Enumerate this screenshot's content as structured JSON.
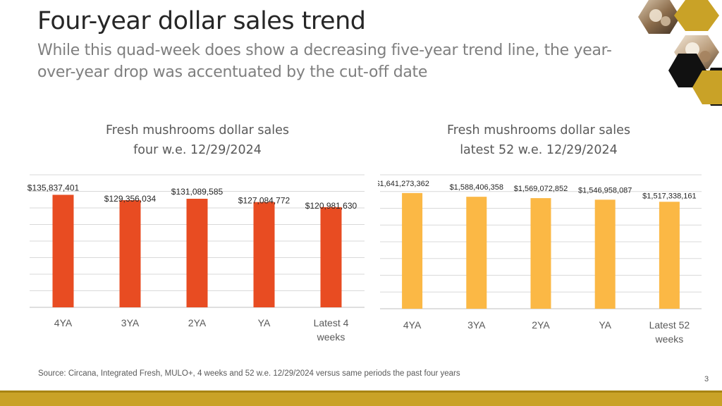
{
  "header": {
    "title": "Four-year dollar sales trend",
    "subtitle": "While this quad-week does show a decreasing five-year trend line, the year-over-year drop was accentuated by the cut-off date"
  },
  "colors": {
    "left_bar": "#e84c22",
    "right_bar": "#fbb845",
    "footer": "#c9a227",
    "grid": "#d9d9d9"
  },
  "chart_data": [
    {
      "id": "left",
      "type": "bar",
      "title_lines": [
        "Fresh mushrooms dollar sales",
        "four w.e. 12/29/2024"
      ],
      "categories": [
        [
          "4YA"
        ],
        [
          "3YA"
        ],
        [
          "2YA"
        ],
        [
          "YA"
        ],
        [
          "Latest 4",
          "weeks"
        ]
      ],
      "values": [
        135837401,
        129356034,
        131089585,
        127084772,
        120981630
      ],
      "labels": [
        "$135,837,401",
        "$129,356,034",
        "$131,089,585",
        "$127,084,772",
        "$120,981,630"
      ],
      "ylim": [
        0,
        160000000
      ],
      "grid_lines": 9,
      "color": "#e84c22"
    },
    {
      "id": "right",
      "type": "bar",
      "title_lines": [
        "Fresh mushrooms dollar sales",
        "latest 52 w.e. 12/29/2024"
      ],
      "categories": [
        [
          "4YA"
        ],
        [
          "3YA"
        ],
        [
          "2YA"
        ],
        [
          "YA"
        ],
        [
          "Latest 52",
          "weeks"
        ]
      ],
      "values": [
        1641273362,
        1588406358,
        1569072852,
        1546958087,
        1517338161
      ],
      "labels": [
        "$1,641,273,362",
        "$1,588,406,358",
        "$1,569,072,852",
        "$1,546,958,087",
        "$1,517,338,161"
      ],
      "ylim": [
        0,
        1900000000
      ],
      "grid_lines": 9,
      "color": "#fbb845"
    }
  ],
  "footer": {
    "source": "Source: Circana, Integrated Fresh, MULO+, 4 weeks and 52 w.e. 12/29/2024 versus same periods the past four years",
    "page_number": "3"
  },
  "decoration": {
    "image_description_icon": "mushroom-photo-honeycomb"
  }
}
